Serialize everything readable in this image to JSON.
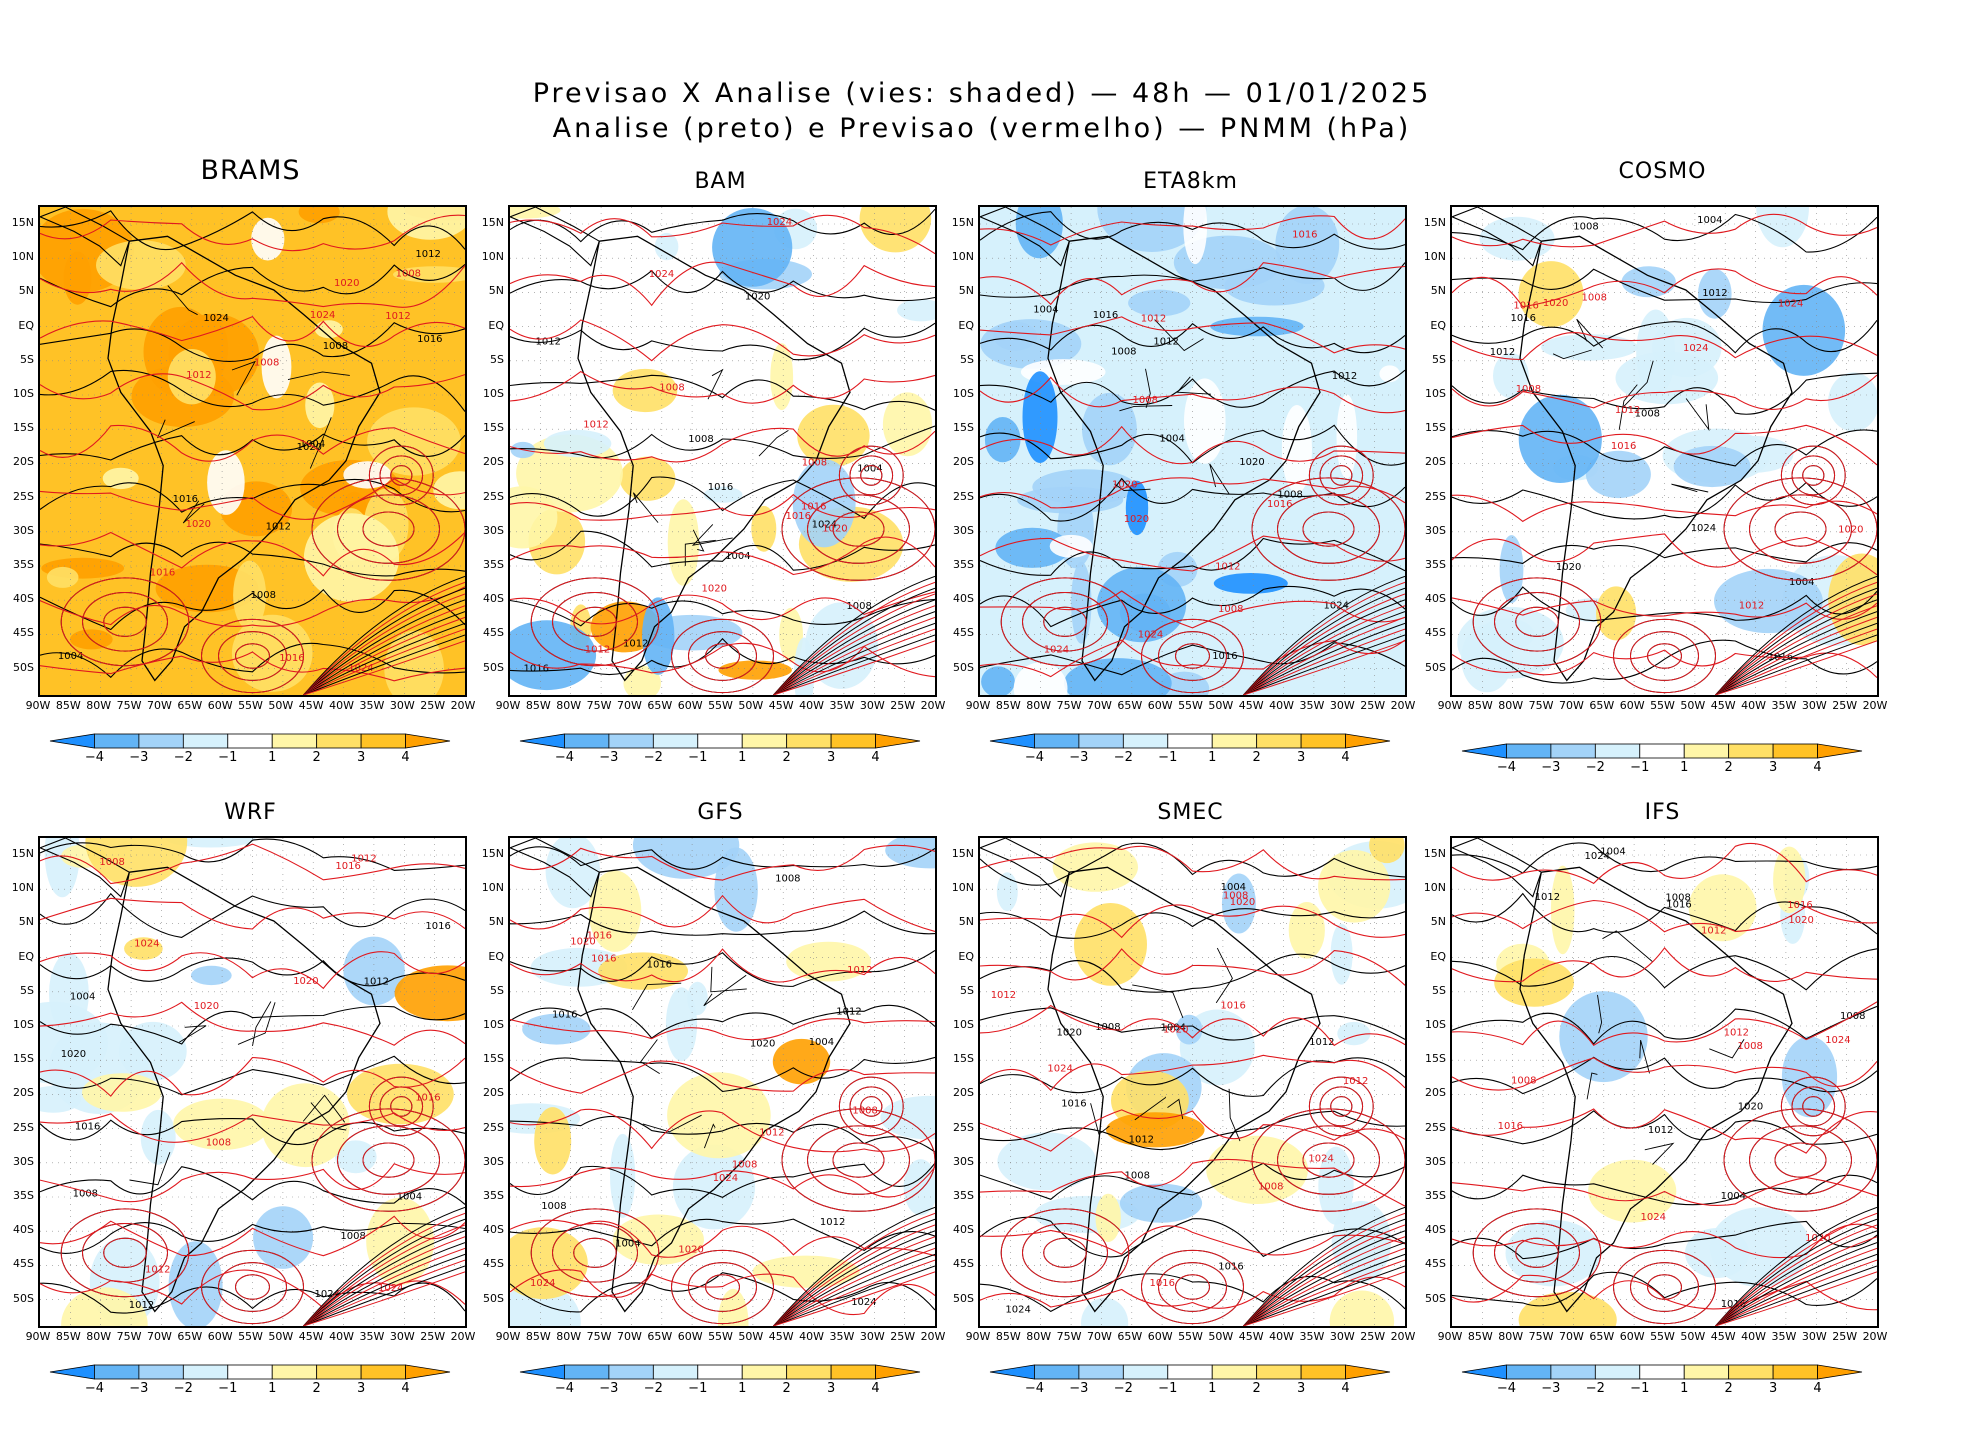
{
  "title": {
    "line1": "Previsao X Analise (vies: shaded) — 48h — 01/01/2025",
    "line2": "Analise (preto) e Previsao (vermelho) — PNMM (hPa)"
  },
  "panels": [
    {
      "name": "BRAMS",
      "bias": "warm-strong"
    },
    {
      "name": "BAM",
      "bias": "mixed"
    },
    {
      "name": "ETA8km",
      "bias": "cold"
    },
    {
      "name": "COSMO",
      "bias": "cold-light"
    },
    {
      "name": "WRF",
      "bias": "mixed-light"
    },
    {
      "name": "GFS",
      "bias": "mixed-light"
    },
    {
      "name": "SMEC",
      "bias": "mixed-light"
    },
    {
      "name": "IFS",
      "bias": "neutral"
    }
  ],
  "lat_labels": [
    "15N",
    "10N",
    "5N",
    "EQ",
    "5S",
    "10S",
    "15S",
    "20S",
    "25S",
    "30S",
    "35S",
    "40S",
    "45S",
    "50S"
  ],
  "lon_labels": [
    "90W",
    "85W",
    "80W",
    "75W",
    "70W",
    "65W",
    "60W",
    "55W",
    "50W",
    "45W",
    "40W",
    "35W",
    "30W",
    "25W",
    "20W"
  ],
  "colorbar": {
    "labels": [
      "−4",
      "−3",
      "−2",
      "−1",
      "1",
      "2",
      "3",
      "4"
    ],
    "colors": [
      "#1e90ff",
      "#63b4f5",
      "#a3d3f8",
      "#d6f1fc",
      "#ffffff",
      "#fff6a8",
      "#ffe066",
      "#ffc226",
      "#ffa000"
    ]
  },
  "isobar_labels": {
    "analysis": [
      "1012",
      "1016",
      "1008",
      "1004",
      "1020",
      "1024"
    ],
    "forecast": [
      "1012",
      "1016",
      "1008",
      "1020",
      "1024"
    ]
  },
  "colors": {
    "analysis": "#000000",
    "forecast": "#e0191f"
  }
}
